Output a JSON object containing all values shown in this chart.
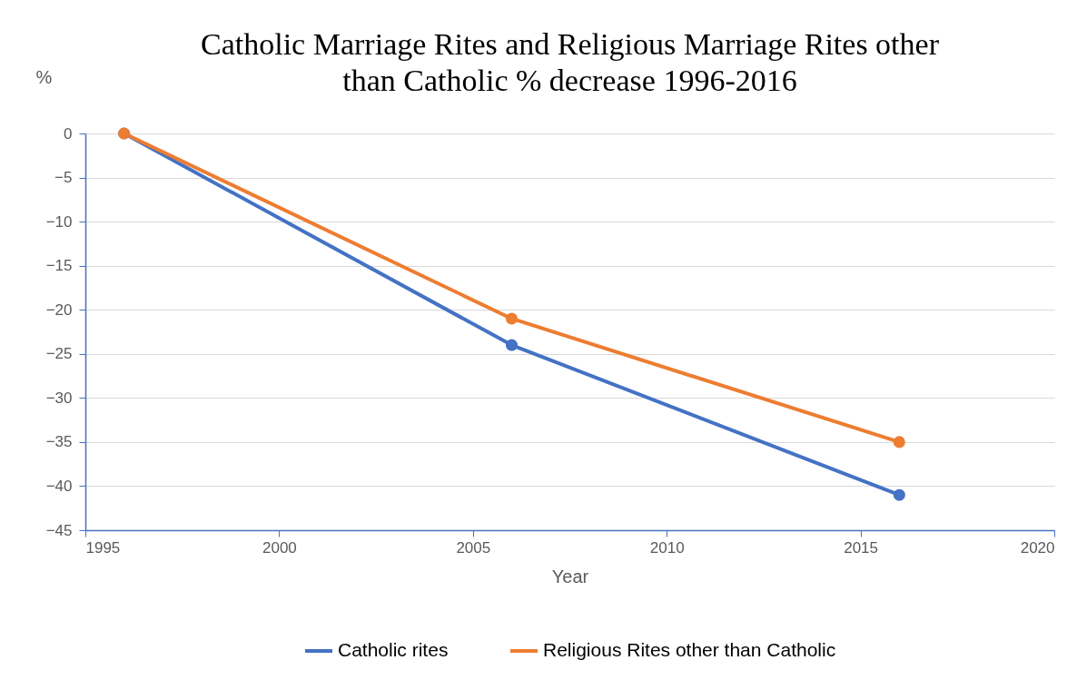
{
  "chart_data": {
    "type": "line",
    "title": "Catholic Marriage Rites and Religious Marriage Rites other than Catholic % decrease 1996-2016",
    "xlabel": "Year",
    "ylabel": "%",
    "x": [
      1996,
      2006,
      2016
    ],
    "series": [
      {
        "name": "Catholic rites",
        "color": "#4472c4",
        "values": [
          0,
          -24,
          -41
        ]
      },
      {
        "name": "Religious Rites other than Catholic",
        "color": "#ed7d31",
        "values": [
          0,
          -21,
          -35
        ]
      }
    ],
    "xlim": [
      1995,
      2020
    ],
    "xticks": [
      1995,
      2000,
      2005,
      2010,
      2015,
      2020
    ],
    "ylim": [
      -45,
      0
    ],
    "yticks": [
      -45,
      -40,
      -35,
      -30,
      -25,
      -20,
      -15,
      -10,
      -5,
      0
    ],
    "grid": "y",
    "legend": "bottom",
    "marker": "circle",
    "line_style": "solid"
  }
}
